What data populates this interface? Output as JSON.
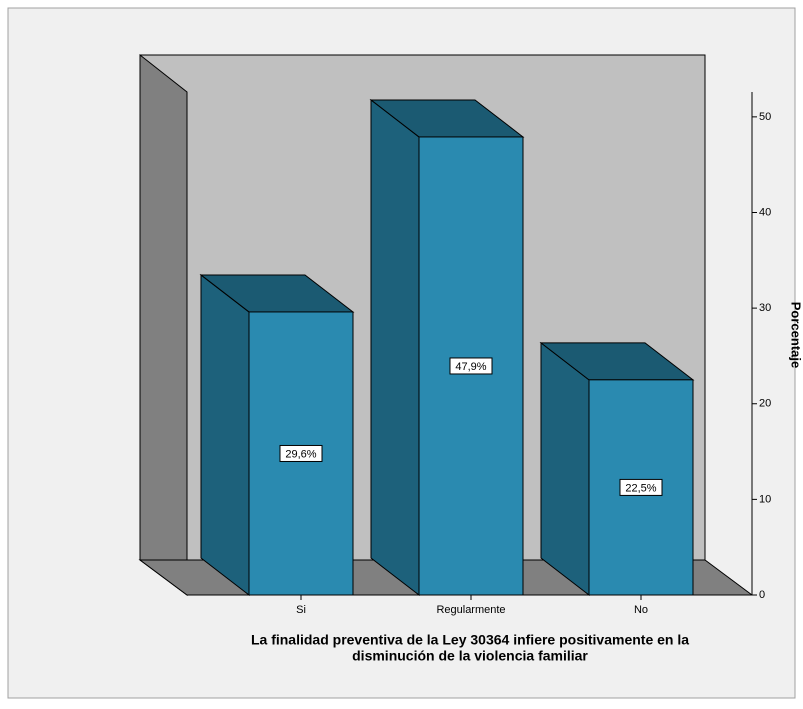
{
  "chart_data": {
    "type": "bar3d",
    "categories": [
      "Si",
      "Regularmente",
      "No"
    ],
    "values": [
      29.6,
      47.9,
      22.5
    ],
    "value_labels": [
      "29,6%",
      "47,9%",
      "22,5%"
    ],
    "color": "#2a8ab0",
    "y_label": "Porcentaje",
    "x_label": [
      "La finalidad preventiva de la Ley 30364 infiere positivamente en la",
      "disminución de la violencia familiar"
    ],
    "ylim": [
      0,
      52.6
    ],
    "yticks": [
      0,
      10,
      20,
      30,
      40,
      50
    ]
  }
}
